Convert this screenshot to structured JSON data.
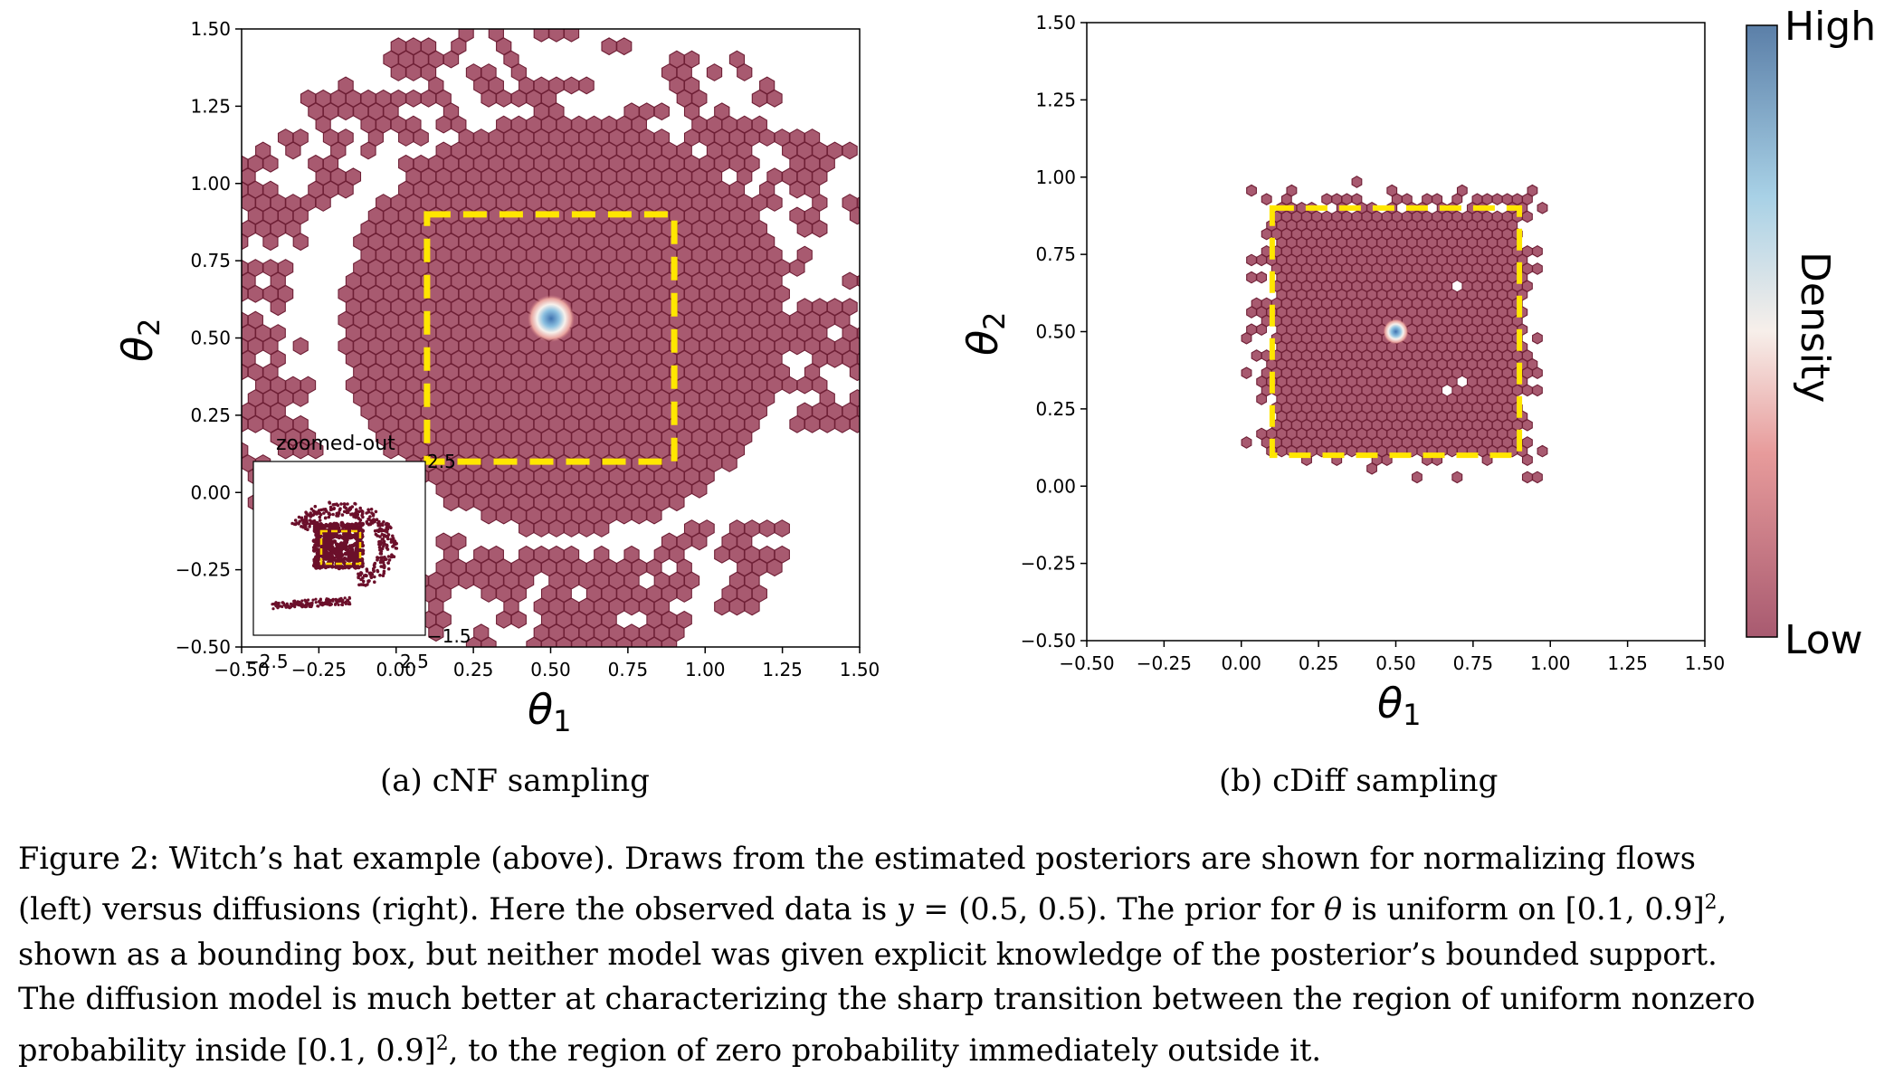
{
  "figure": {
    "panels": [
      {
        "id": "a",
        "caption": "(a) cNF sampling",
        "xlabel_symbol": "θ",
        "xlabel_sub": "1",
        "ylabel_symbol": "θ",
        "ylabel_sub": "2",
        "x_ticks": [
          "−0.50",
          "−0.25",
          "0.00",
          "0.25",
          "0.50",
          "0.75",
          "1.00",
          "1.25",
          "1.50"
        ],
        "y_ticks": [
          "−0.50",
          "−0.25",
          "0.00",
          "0.25",
          "0.50",
          "0.75",
          "1.00",
          "1.25",
          "1.50"
        ],
        "inset": {
          "title": "zoomed-out",
          "x_ticks": [
            "−2.5",
            "2.5"
          ],
          "y_ticks": [
            "2.5",
            "−1.5"
          ]
        }
      },
      {
        "id": "b",
        "caption": "(b) cDiff sampling",
        "xlabel_symbol": "θ",
        "xlabel_sub": "1",
        "ylabel_symbol": "θ",
        "ylabel_sub": "2",
        "x_ticks": [
          "−0.50",
          "−0.25",
          "0.00",
          "0.25",
          "0.50",
          "0.75",
          "1.00",
          "1.25",
          "1.50"
        ],
        "y_ticks": [
          "−0.50",
          "−0.25",
          "0.00",
          "0.25",
          "0.50",
          "0.75",
          "1.00",
          "1.25",
          "1.50"
        ]
      }
    ],
    "colorbar": {
      "label": "Density",
      "high": "High",
      "low": "Low",
      "colors": [
        "#a85a70",
        "#e79b9b",
        "#f7efea",
        "#a8d1e6",
        "#5b7fa8"
      ]
    },
    "caption_lines": [
      [
        {
          "t": "Figure 2: Witch’s hat example (above). Draws from the estimated posteriors are shown for normalizing flows"
        }
      ],
      [
        {
          "t": "(left) versus diffusions (right). Here the observed data is "
        },
        {
          "t": "y",
          "m": true
        },
        {
          "t": " = (0.5, 0.5). The prior for "
        },
        {
          "t": "θ",
          "m": true
        },
        {
          "t": " is uniform on [0.1, 0.9]"
        },
        {
          "t": "2",
          "sup": true
        },
        {
          "t": ","
        }
      ],
      [
        {
          "t": "shown as a bounding box, but neither model was given explicit knowledge of the posterior’s bounded support."
        }
      ],
      [
        {
          "t": "The diffusion model is much better at characterizing the sharp transition between the region of uniform nonzero"
        }
      ],
      [
        {
          "t": "probability inside [0.1, 0.9]"
        },
        {
          "t": "2",
          "sup": true
        },
        {
          "t": ", to the region of zero probability immediately outside it."
        }
      ]
    ],
    "chart_data": [
      {
        "type": "scatter",
        "title": "(a) cNF sampling",
        "xlabel": "θ1",
        "ylabel": "θ2",
        "xlim": [
          -0.5,
          1.5
        ],
        "ylim": [
          -0.5,
          1.5
        ],
        "plot_style": "hexbin",
        "prior_box": {
          "x": [
            0.1,
            0.9
          ],
          "y": [
            0.1,
            0.9
          ]
        },
        "density_peak": [
          0.5,
          0.5
        ],
        "inset": {
          "title": "zoomed-out"
        }
      },
      {
        "type": "scatter",
        "title": "(b) cDiff sampling",
        "xlabel": "θ1",
        "ylabel": "θ2",
        "xlim": [
          -0.5,
          1.5
        ],
        "ylim": [
          -0.5,
          1.5
        ],
        "plot_style": "hexbin",
        "prior_box": {
          "x": [
            0.1,
            0.9
          ],
          "y": [
            0.1,
            0.9
          ]
        },
        "density_peak": [
          0.5,
          0.5
        ]
      }
    ]
  }
}
